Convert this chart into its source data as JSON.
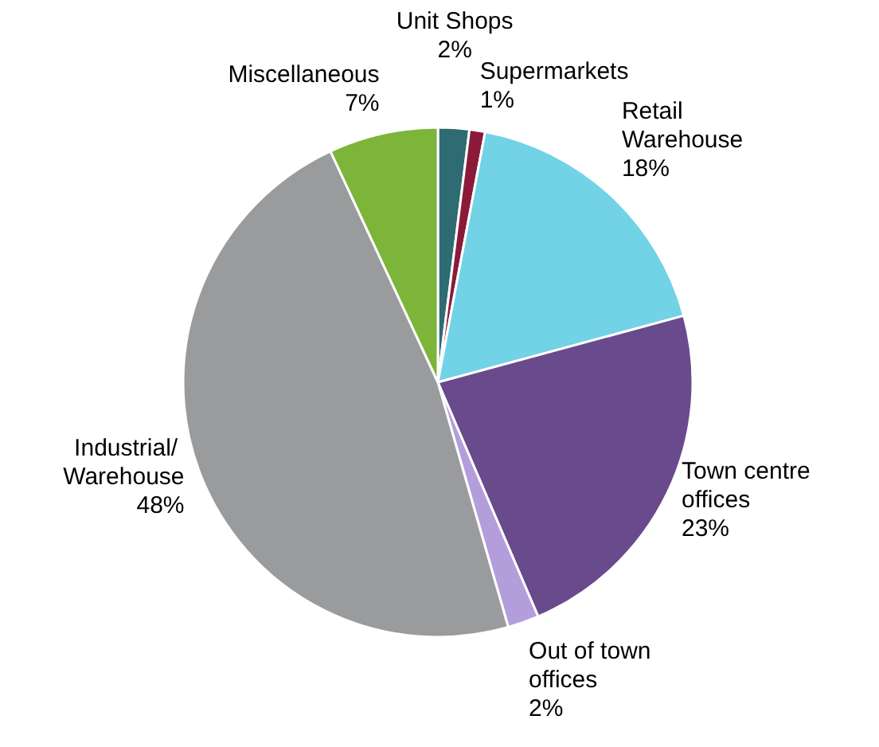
{
  "chart_data": {
    "type": "pie",
    "categories": [
      "Unit Shops",
      "Supermarkets",
      "Retail Warehouse",
      "Town centre offices",
      "Out of town offices",
      "Industrial/ Warehouse",
      "Miscellaneous"
    ],
    "values": [
      2,
      1,
      18,
      23,
      2,
      48,
      7
    ],
    "value_labels": [
      "2%",
      "1%",
      "18%",
      "23%",
      "2%",
      "48%",
      "7%"
    ],
    "colors": [
      "#2e6b73",
      "#8b1a3a",
      "#72d2e6",
      "#694a8d",
      "#b39ddb",
      "#9a9b9d",
      "#7cb53a"
    ],
    "legend": false
  }
}
